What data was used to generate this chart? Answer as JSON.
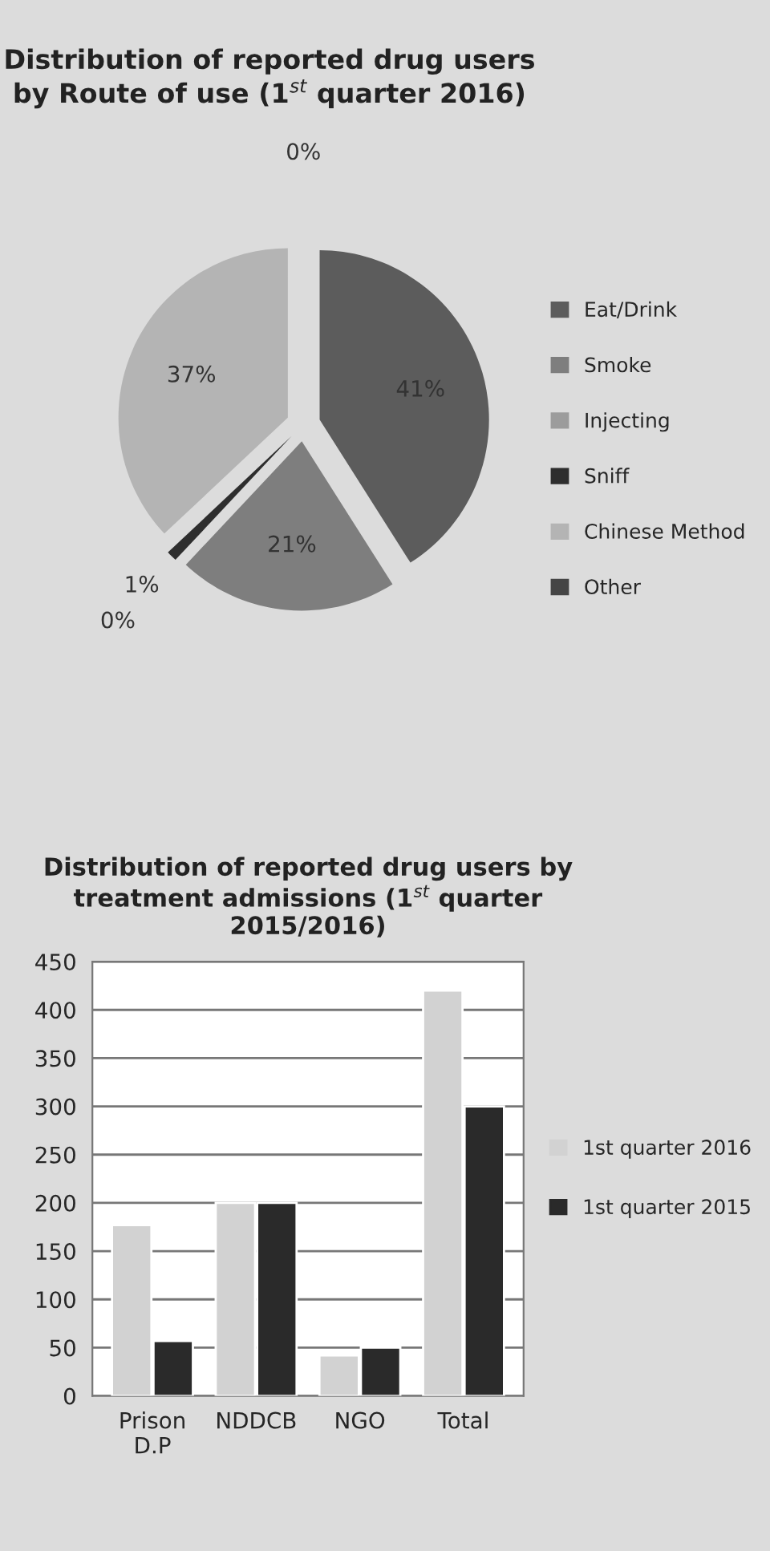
{
  "chart_data": [
    {
      "type": "pie",
      "title": "Distribution of reported drug users by Route of use (1$^{st}$ quarter 2016)",
      "categories": [
        "Eat/Drink",
        "Smoke",
        "Injecting",
        "Sniff",
        "Chinese Method",
        "Other"
      ],
      "values": [
        41,
        21,
        0,
        1,
        37,
        0
      ],
      "value_labels": [
        "41%",
        "21%",
        "0%",
        "1%",
        "37%",
        "0%"
      ],
      "colors": [
        "#5c5c5c",
        "#7e7e7e",
        "#9c9c9c",
        "#2e2e2e",
        "#b4b4b4",
        "#454545"
      ],
      "legend": "right"
    },
    {
      "type": "bar",
      "title": "Distribution of reported drug users by treatment admissions (1$^{st}$ quarter 2015/2016)",
      "categories": [
        "Prison\nD.P",
        "NDDCB",
        "NGO",
        "Total"
      ],
      "series": [
        {
          "name": "1st quarter 2016",
          "color": "#d2d2d2",
          "values": [
            177,
            200,
            42,
            420
          ]
        },
        {
          "name": "1st quarter 2015",
          "color": "#2a2a2a",
          "values": [
            57,
            200,
            50,
            300
          ]
        }
      ],
      "ylim": [
        0,
        450
      ],
      "yticks": [
        0,
        50,
        100,
        150,
        200,
        250,
        300,
        350,
        400,
        450
      ],
      "grid": "y",
      "legend": "right"
    }
  ]
}
